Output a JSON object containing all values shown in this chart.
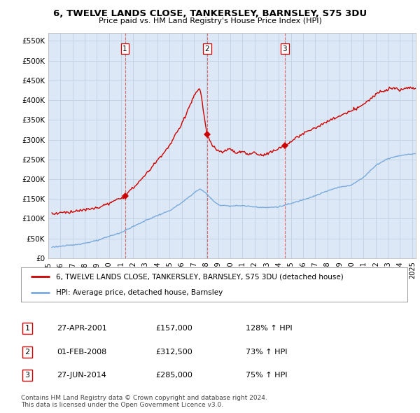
{
  "title": "6, TWELVE LANDS CLOSE, TANKERSLEY, BARNSLEY, S75 3DU",
  "subtitle": "Price paid vs. HM Land Registry's House Price Index (HPI)",
  "ylim": [
    0,
    570000
  ],
  "yticks": [
    0,
    50000,
    100000,
    150000,
    200000,
    250000,
    300000,
    350000,
    400000,
    450000,
    500000,
    550000
  ],
  "xlim_start": 1995.3,
  "xlim_end": 2025.3,
  "sale_dates": [
    2001.32,
    2008.08,
    2014.49
  ],
  "sale_prices": [
    157000,
    312500,
    285000
  ],
  "sale_labels": [
    "1",
    "2",
    "3"
  ],
  "red_line_color": "#cc0000",
  "blue_line_color": "#7aaadd",
  "plot_bg_color": "#dce8f5",
  "vline_color": "#dd4444",
  "legend_label_red": "6, TWELVE LANDS CLOSE, TANKERSLEY, BARNSLEY, S75 3DU (detached house)",
  "legend_label_blue": "HPI: Average price, detached house, Barnsley",
  "table_rows": [
    [
      "1",
      "27-APR-2001",
      "£157,000",
      "128% ↑ HPI"
    ],
    [
      "2",
      "01-FEB-2008",
      "£312,500",
      "73% ↑ HPI"
    ],
    [
      "3",
      "27-JUN-2014",
      "£285,000",
      "75% ↑ HPI"
    ]
  ],
  "footer": "Contains HM Land Registry data © Crown copyright and database right 2024.\nThis data is licensed under the Open Government Licence v3.0.",
  "background_color": "#ffffff",
  "grid_color": "#c0d0e0"
}
